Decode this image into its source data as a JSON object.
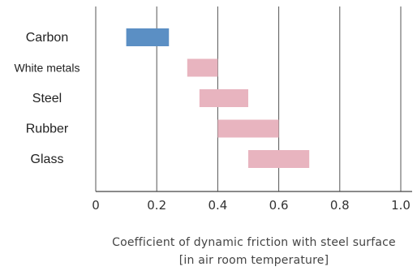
{
  "chart_data": {
    "type": "bar",
    "orientation": "horizontal-range",
    "categories": [
      "Carbon",
      "White metals",
      "Steel",
      "Rubber",
      "Glass"
    ],
    "ranges": [
      {
        "category": "Carbon",
        "min": 0.1,
        "max": 0.24,
        "color": "#5b8fc4"
      },
      {
        "category": "White metals",
        "min": 0.3,
        "max": 0.4,
        "color": "#e8b4bf"
      },
      {
        "category": "Steel",
        "min": 0.34,
        "max": 0.5,
        "color": "#e8b4bf"
      },
      {
        "category": "Rubber",
        "min": 0.4,
        "max": 0.6,
        "color": "#e8b4bf"
      },
      {
        "category": "Glass",
        "min": 0.5,
        "max": 0.7,
        "color": "#e8b4bf"
      }
    ],
    "xticks": [
      "0",
      "0.2",
      "0.4",
      "0.6",
      "0.8",
      "1.0"
    ],
    "xlim": [
      0,
      1.0
    ],
    "xlabel": "Coefficient of dynamic friction with steel surface",
    "xlabel_line2": "[in air room temperature]",
    "grid": "vertical"
  }
}
